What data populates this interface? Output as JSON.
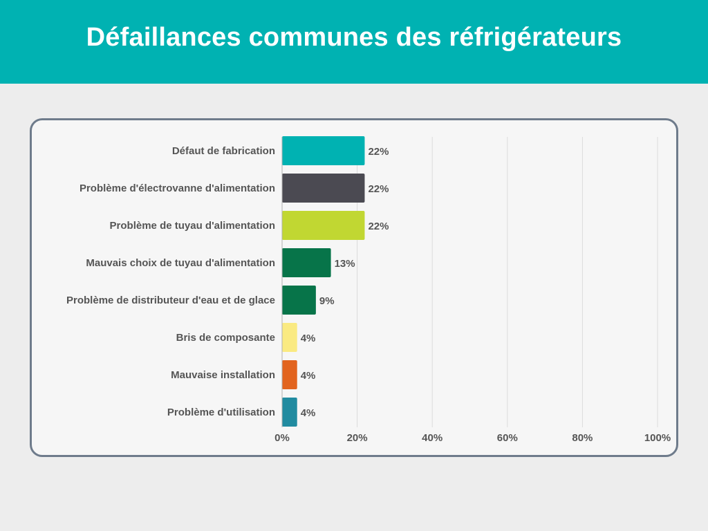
{
  "header": {
    "title": "Défaillances communes des réfrigérateurs"
  },
  "chart_data": {
    "type": "bar",
    "orientation": "horizontal",
    "title": "",
    "xlabel": "",
    "ylabel": "",
    "xlim": [
      0,
      100
    ],
    "x_ticks": [
      0,
      20,
      40,
      60,
      80,
      100
    ],
    "tick_suffix": "%",
    "grid": true,
    "categories": [
      "Défaut de fabrication",
      "Problème d'électrovanne d'alimentation",
      "Problème de tuyau d'alimentation",
      "Mauvais choix de tuyau d'alimentation",
      "Problème de distributeur d'eau et de glace",
      "Bris de composante",
      "Mauvaise installation",
      "Problème d'utilisation"
    ],
    "values": [
      22,
      22,
      22,
      13,
      9,
      4,
      4,
      4
    ],
    "value_labels": [
      "22%",
      "22%",
      "22%",
      "13%",
      "9%",
      "4%",
      "4%",
      "4%"
    ],
    "colors": [
      "#00b2b2",
      "#4b4a52",
      "#c1d732",
      "#077449",
      "#077449",
      "#faea82",
      "#e2641f",
      "#218ba0"
    ]
  },
  "colors": {
    "header_bg": "#00b2b2",
    "card_border": "#6e7b8b",
    "card_bg": "#f6f6f6",
    "page_bg": "#ededed"
  }
}
